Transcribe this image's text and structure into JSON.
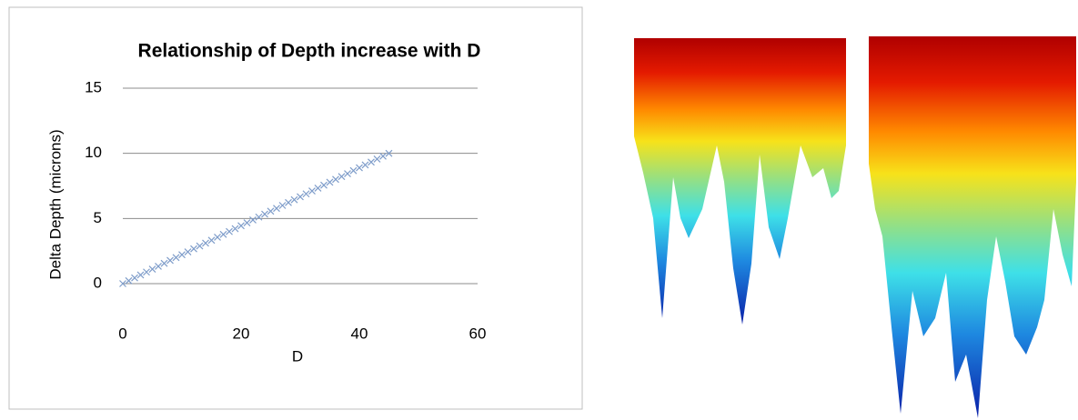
{
  "chart_data": {
    "type": "scatter",
    "title": "Relationship of Depth increase with D",
    "x_label": "D",
    "y_label": "Delta Depth  (microns)",
    "xlim": [
      0,
      60
    ],
    "xticks": [
      0,
      20,
      40,
      60
    ],
    "ylim": [
      0,
      15
    ],
    "yticks": [
      0,
      5,
      10,
      15
    ],
    "grid": true,
    "color": "#7f9dca",
    "x": [
      0,
      1,
      2,
      3,
      4,
      5,
      6,
      7,
      8,
      9,
      10,
      11,
      12,
      13,
      14,
      15,
      16,
      17,
      18,
      19,
      20,
      21,
      22,
      23,
      24,
      25,
      26,
      27,
      28,
      29,
      30,
      31,
      32,
      33,
      34,
      35,
      36,
      37,
      38,
      39,
      40,
      41,
      42,
      43,
      44,
      45
    ],
    "values": [
      0,
      0.22,
      0.44,
      0.67,
      0.89,
      1.11,
      1.33,
      1.56,
      1.78,
      2,
      2.22,
      2.44,
      2.67,
      2.89,
      3.11,
      3.33,
      3.56,
      3.78,
      4,
      4.22,
      4.44,
      4.67,
      4.89,
      5.11,
      5.33,
      5.56,
      5.78,
      6,
      6.22,
      6.44,
      6.67,
      6.89,
      7.11,
      7.33,
      7.56,
      7.78,
      8,
      8.22,
      8.44,
      8.67,
      8.89,
      9.11,
      9.33,
      9.56,
      9.78,
      10
    ]
  }
}
